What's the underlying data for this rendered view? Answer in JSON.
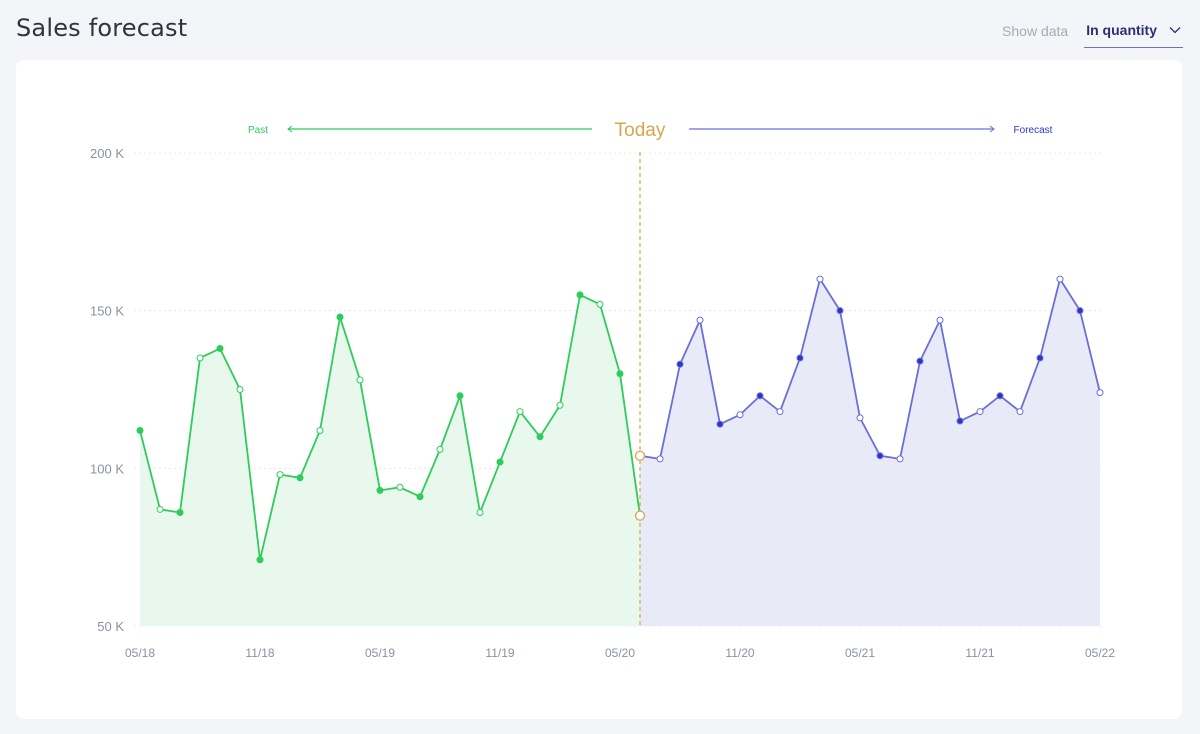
{
  "header": {
    "title": "Sales forecast",
    "show_data_label": "Show data",
    "show_data_value": "In quantity"
  },
  "colors": {
    "past": "#2ecc5a",
    "past_fill": "#e8f8ec",
    "forecast": "#6a6fd6",
    "forecast_dark": "#2f34c8",
    "forecast_fill": "#e9eaf8",
    "today": "#d7a64a",
    "axis_text": "#8a90a6",
    "grid": "#e6e8ee"
  },
  "chart_data": {
    "type": "area",
    "today_label": "Today",
    "past_label": "Past",
    "forecast_label": "Forecast",
    "y_unit": "K",
    "ylim": [
      50,
      200
    ],
    "yticks": [
      50,
      100,
      150,
      200
    ],
    "grid": true,
    "x_labels": [
      "05/18",
      "11/18",
      "05/19",
      "11/19",
      "05/20",
      "11/20",
      "05/21",
      "11/21",
      "05/22"
    ],
    "x_label_months": [
      0,
      6,
      12,
      18,
      24,
      30,
      36,
      42,
      48
    ],
    "today_month": 25,
    "series": [
      {
        "name": "Past",
        "points": [
          {
            "m": 0,
            "v": 112,
            "f": true
          },
          {
            "m": 1,
            "v": 87,
            "f": false
          },
          {
            "m": 2,
            "v": 86,
            "f": true
          },
          {
            "m": 3,
            "v": 135,
            "f": false
          },
          {
            "m": 4,
            "v": 138,
            "f": true
          },
          {
            "m": 5,
            "v": 125,
            "f": false
          },
          {
            "m": 6,
            "v": 71,
            "f": true
          },
          {
            "m": 7,
            "v": 98,
            "f": false
          },
          {
            "m": 8,
            "v": 97,
            "f": true
          },
          {
            "m": 9,
            "v": 112,
            "f": false
          },
          {
            "m": 10,
            "v": 148,
            "f": true
          },
          {
            "m": 11,
            "v": 128,
            "f": false
          },
          {
            "m": 12,
            "v": 93,
            "f": true
          },
          {
            "m": 13,
            "v": 94,
            "f": false
          },
          {
            "m": 14,
            "v": 91,
            "f": true
          },
          {
            "m": 15,
            "v": 106,
            "f": false
          },
          {
            "m": 16,
            "v": 123,
            "f": true
          },
          {
            "m": 17,
            "v": 86,
            "f": false
          },
          {
            "m": 18,
            "v": 102,
            "f": true
          },
          {
            "m": 19,
            "v": 118,
            "f": false
          },
          {
            "m": 20,
            "v": 110,
            "f": true
          },
          {
            "m": 21,
            "v": 120,
            "f": false
          },
          {
            "m": 22,
            "v": 155,
            "f": true
          },
          {
            "m": 23,
            "v": 152,
            "f": false
          },
          {
            "m": 24,
            "v": 130,
            "f": true
          },
          {
            "m": 25,
            "v": 85,
            "f": false,
            "today": true
          }
        ]
      },
      {
        "name": "Forecast",
        "points": [
          {
            "m": 25,
            "v": 104,
            "f": false,
            "today": true
          },
          {
            "m": 26,
            "v": 103,
            "f": false
          },
          {
            "m": 27,
            "v": 133,
            "f": true
          },
          {
            "m": 28,
            "v": 147,
            "f": false
          },
          {
            "m": 29,
            "v": 114,
            "f": true
          },
          {
            "m": 30,
            "v": 117,
            "f": false
          },
          {
            "m": 31,
            "v": 123,
            "f": true
          },
          {
            "m": 32,
            "v": 118,
            "f": false
          },
          {
            "m": 33,
            "v": 135,
            "f": true
          },
          {
            "m": 34,
            "v": 160,
            "f": false
          },
          {
            "m": 35,
            "v": 150,
            "f": true
          },
          {
            "m": 36,
            "v": 116,
            "f": false
          },
          {
            "m": 37,
            "v": 104,
            "f": true
          },
          {
            "m": 38,
            "v": 103,
            "f": false
          },
          {
            "m": 39,
            "v": 134,
            "f": true
          },
          {
            "m": 40,
            "v": 147,
            "f": false
          },
          {
            "m": 41,
            "v": 115,
            "f": true
          },
          {
            "m": 42,
            "v": 118,
            "f": false
          },
          {
            "m": 43,
            "v": 123,
            "f": true
          },
          {
            "m": 44,
            "v": 118,
            "f": false
          },
          {
            "m": 45,
            "v": 135,
            "f": true
          },
          {
            "m": 46,
            "v": 160,
            "f": false
          },
          {
            "m": 47,
            "v": 150,
            "f": true
          },
          {
            "m": 48,
            "v": 124,
            "f": false
          }
        ]
      }
    ]
  }
}
